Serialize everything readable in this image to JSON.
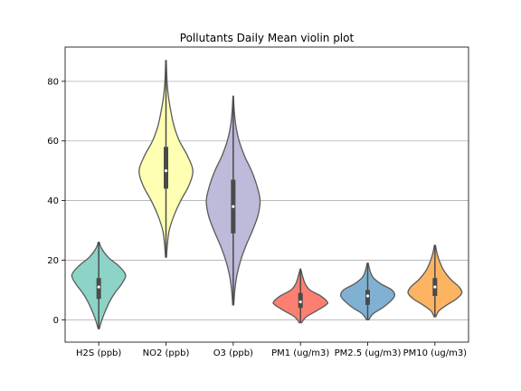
{
  "chart_data": {
    "type": "violin",
    "title": "Pollutants Daily Mean violin plot",
    "xlabel": "",
    "ylabel": "",
    "ylim": [
      -7.5,
      91.5
    ],
    "yticks": [
      0,
      20,
      40,
      60,
      80
    ],
    "grid": "horizontal",
    "categories": [
      "H2S (ppb)",
      "NO2 (ppb)",
      "O3 (ppb)",
      "PM1 (ug/m3)",
      "PM2.5 (ug/m3)",
      "PM10 (ug/m3)"
    ],
    "colors": [
      "#8dd3c7",
      "#ffffb3",
      "#bebada",
      "#fb8072",
      "#80b1d3",
      "#fdb462"
    ],
    "series": [
      {
        "min": -3,
        "max": 26,
        "q1": 7,
        "median": 11,
        "q3": 14,
        "density": [
          [
            -3,
            0.02
          ],
          [
            0,
            0.12
          ],
          [
            3,
            0.25
          ],
          [
            6,
            0.4
          ],
          [
            9,
            0.6
          ],
          [
            12,
            0.85
          ],
          [
            15,
            1.0
          ],
          [
            18,
            0.75
          ],
          [
            21,
            0.35
          ],
          [
            24,
            0.1
          ],
          [
            26,
            0.02
          ]
        ]
      },
      {
        "min": 21,
        "max": 87,
        "q1": 44,
        "median": 50,
        "q3": 58,
        "density": [
          [
            21,
            0.02
          ],
          [
            25,
            0.05
          ],
          [
            30,
            0.12
          ],
          [
            35,
            0.3
          ],
          [
            40,
            0.55
          ],
          [
            45,
            0.85
          ],
          [
            50,
            1.0
          ],
          [
            55,
            0.8
          ],
          [
            60,
            0.5
          ],
          [
            65,
            0.3
          ],
          [
            70,
            0.18
          ],
          [
            75,
            0.09
          ],
          [
            80,
            0.04
          ],
          [
            87,
            0.01
          ]
        ]
      },
      {
        "min": 5,
        "max": 75,
        "q1": 29,
        "median": 38,
        "q3": 47,
        "density": [
          [
            5,
            0.02
          ],
          [
            10,
            0.06
          ],
          [
            15,
            0.14
          ],
          [
            20,
            0.28
          ],
          [
            25,
            0.48
          ],
          [
            30,
            0.72
          ],
          [
            35,
            0.92
          ],
          [
            40,
            1.0
          ],
          [
            45,
            0.88
          ],
          [
            50,
            0.68
          ],
          [
            55,
            0.42
          ],
          [
            60,
            0.22
          ],
          [
            65,
            0.1
          ],
          [
            70,
            0.04
          ],
          [
            75,
            0.01
          ]
        ]
      },
      {
        "min": -1,
        "max": 17,
        "q1": 4,
        "median": 6,
        "q3": 9,
        "density": [
          [
            -1,
            0.04
          ],
          [
            1,
            0.22
          ],
          [
            3,
            0.6
          ],
          [
            5,
            0.95
          ],
          [
            6,
            1.0
          ],
          [
            8,
            0.75
          ],
          [
            10,
            0.35
          ],
          [
            12,
            0.18
          ],
          [
            14,
            0.1
          ],
          [
            16,
            0.04
          ],
          [
            17,
            0.01
          ]
        ]
      },
      {
        "min": 0,
        "max": 19,
        "q1": 5,
        "median": 8,
        "q3": 10,
        "density": [
          [
            0,
            0.04
          ],
          [
            2,
            0.2
          ],
          [
            4,
            0.55
          ],
          [
            6,
            0.82
          ],
          [
            8,
            1.0
          ],
          [
            10,
            0.9
          ],
          [
            12,
            0.5
          ],
          [
            14,
            0.22
          ],
          [
            16,
            0.1
          ],
          [
            19,
            0.02
          ]
        ]
      },
      {
        "min": 1,
        "max": 25,
        "q1": 8,
        "median": 11,
        "q3": 14,
        "density": [
          [
            1,
            0.03
          ],
          [
            3,
            0.15
          ],
          [
            5,
            0.45
          ],
          [
            7,
            0.8
          ],
          [
            9,
            1.0
          ],
          [
            11,
            0.9
          ],
          [
            13,
            0.65
          ],
          [
            15,
            0.45
          ],
          [
            17,
            0.3
          ],
          [
            19,
            0.2
          ],
          [
            21,
            0.12
          ],
          [
            23,
            0.06
          ],
          [
            25,
            0.02
          ]
        ]
      }
    ]
  }
}
